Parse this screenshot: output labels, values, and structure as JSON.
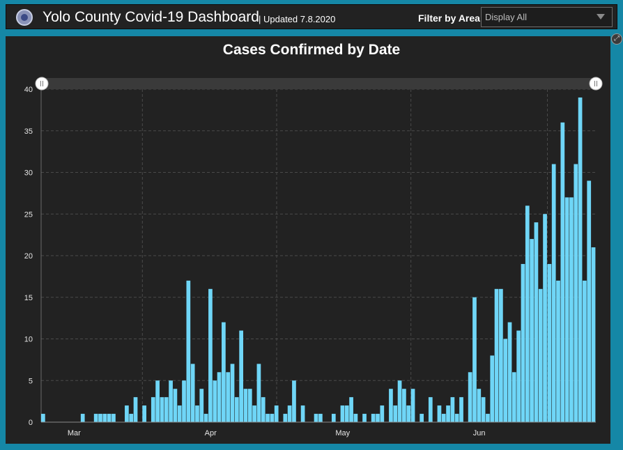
{
  "header": {
    "title": "Yolo County Covid-19 Dashboard",
    "updated": "| Updated 7.8.2020",
    "logo_icon": "county-seal-icon"
  },
  "filter": {
    "label": "Filter by Area",
    "selected": "Display All"
  },
  "colors": {
    "bar": "#6fd6f7",
    "background": "#222222",
    "frame": "#1587a6"
  },
  "chart_data": {
    "type": "bar",
    "title": "Cases Confirmed by Date",
    "xlabel": "",
    "ylabel": "",
    "ylim": [
      0,
      40
    ],
    "yticks": [
      0,
      5,
      10,
      15,
      20,
      25,
      30,
      35,
      40
    ],
    "start_date": "2020-02-23",
    "month_ticks": [
      {
        "label": "Mar",
        "date": "2020-03-01"
      },
      {
        "label": "Apr",
        "date": "2020-04-01"
      },
      {
        "label": "May",
        "date": "2020-05-01"
      },
      {
        "label": "Jun",
        "date": "2020-06-01"
      }
    ],
    "grid": true,
    "range_slider": true,
    "values": [
      1,
      0,
      0,
      0,
      0,
      0,
      0,
      0,
      0,
      1,
      0,
      0,
      1,
      1,
      1,
      1,
      1,
      0,
      0,
      2,
      1,
      3,
      0,
      2,
      0,
      3,
      5,
      3,
      3,
      5,
      4,
      2,
      5,
      17,
      7,
      2,
      4,
      1,
      16,
      5,
      6,
      12,
      6,
      7,
      3,
      11,
      4,
      4,
      2,
      7,
      3,
      1,
      1,
      2,
      0,
      1,
      2,
      5,
      0,
      2,
      0,
      0,
      1,
      1,
      0,
      0,
      1,
      0,
      2,
      2,
      3,
      1,
      0,
      1,
      0,
      1,
      1,
      2,
      0,
      4,
      2,
      5,
      4,
      2,
      4,
      0,
      1,
      0,
      3,
      0,
      2,
      1,
      2,
      3,
      1,
      3,
      0,
      6,
      15,
      4,
      3,
      1,
      8,
      16,
      16,
      10,
      12,
      6,
      11,
      19,
      26,
      22,
      24,
      16,
      25,
      19,
      31,
      17,
      36,
      27,
      27,
      31,
      39,
      17,
      29,
      21
    ]
  }
}
